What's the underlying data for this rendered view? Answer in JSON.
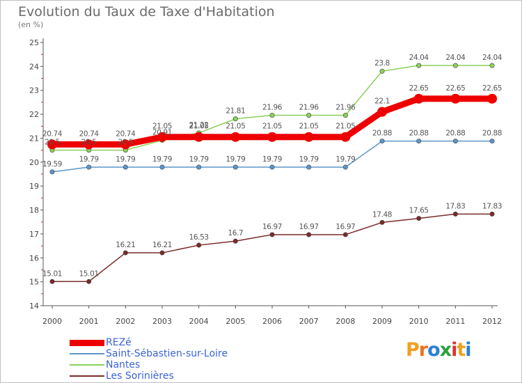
{
  "title": "Evolution du Taux de Taxe d'Habitation",
  "unit_label": "(en %)",
  "logo": {
    "text": "Proxiti",
    "letters": [
      "P",
      "r",
      "o",
      "x",
      "i",
      "t",
      "i"
    ],
    "colors": [
      "#f0a020",
      "#f07020",
      "#2a7fd4",
      "#2aa040",
      "#e03030",
      "#f0a020",
      "#2a7fd4"
    ]
  },
  "colors": {
    "axis": "#555555",
    "tick_label": "#444444",
    "gridline": "#dddddd",
    "series_label": "#555555"
  },
  "chart_data": {
    "type": "line",
    "title": "Evolution du Taux de Taxe d'Habitation",
    "ylabel": "(en %)",
    "x": [
      "2000",
      "2001",
      "2002",
      "2003",
      "2004",
      "2005",
      "2006",
      "2007",
      "2008",
      "2009",
      "2010",
      "2011",
      "2012"
    ],
    "y_ticks": [
      "14",
      "15",
      "16",
      "17",
      "18",
      "19",
      "20",
      "21",
      "22",
      "23",
      "24",
      "25"
    ],
    "ylim": [
      14,
      25
    ],
    "grid": false,
    "legend_position": "bottom-left",
    "series": [
      {
        "name": "REZé",
        "color": "#ee0000",
        "line_width": 9,
        "marker_radius": 7,
        "values": [
          20.74,
          20.74,
          20.74,
          21.05,
          21.05,
          21.05,
          21.05,
          21.05,
          21.05,
          22.1,
          22.65,
          22.65,
          22.65
        ],
        "labels": [
          "20.74",
          "20.74",
          "20.74",
          "21.05",
          "21.05",
          "21.05",
          "21.05",
          "21.05",
          "21.05",
          "22.1",
          "22.65",
          "22.65",
          "22.65"
        ]
      },
      {
        "name": "Saint-Sébastien-sur-Loire",
        "color": "#5b95c8",
        "line_width": 1.5,
        "marker_radius": 3.2,
        "values": [
          19.59,
          19.79,
          19.79,
          19.79,
          19.79,
          19.79,
          19.79,
          19.79,
          19.79,
          20.88,
          20.88,
          20.88,
          20.88
        ],
        "labels": [
          "19.59",
          "19.79",
          "19.79",
          "19.79",
          "19.79",
          "19.79",
          "19.79",
          "19.79",
          "19.79",
          "20.88",
          "20.88",
          "20.88",
          "20.88"
        ]
      },
      {
        "name": "Nantes",
        "color": "#8ad05a",
        "line_width": 1.5,
        "marker_radius": 3.2,
        "values": [
          20.5,
          20.5,
          20.5,
          20.91,
          21.22,
          21.81,
          21.96,
          21.96,
          21.96,
          23.8,
          24.04,
          24.04,
          24.04
        ],
        "labels": [
          "20.5",
          "20.5",
          "20.5",
          "20.91",
          "21.22",
          "21.81",
          "21.96",
          "21.96",
          "21.96",
          "23.8",
          "24.04",
          "24.04",
          "24.04"
        ]
      },
      {
        "name": "Les Sorinières",
        "color": "#7a2a2a",
        "line_width": 1.5,
        "marker_radius": 3.2,
        "values": [
          15.01,
          15.01,
          16.21,
          16.21,
          16.53,
          16.7,
          16.97,
          16.97,
          16.97,
          17.48,
          17.65,
          17.83,
          17.83
        ],
        "labels": [
          "15.01",
          "15.01",
          "16.21",
          "16.21",
          "16.53",
          "16.7",
          "16.97",
          "16.97",
          "16.97",
          "17.48",
          "17.65",
          "17.83",
          "17.83"
        ]
      }
    ]
  }
}
